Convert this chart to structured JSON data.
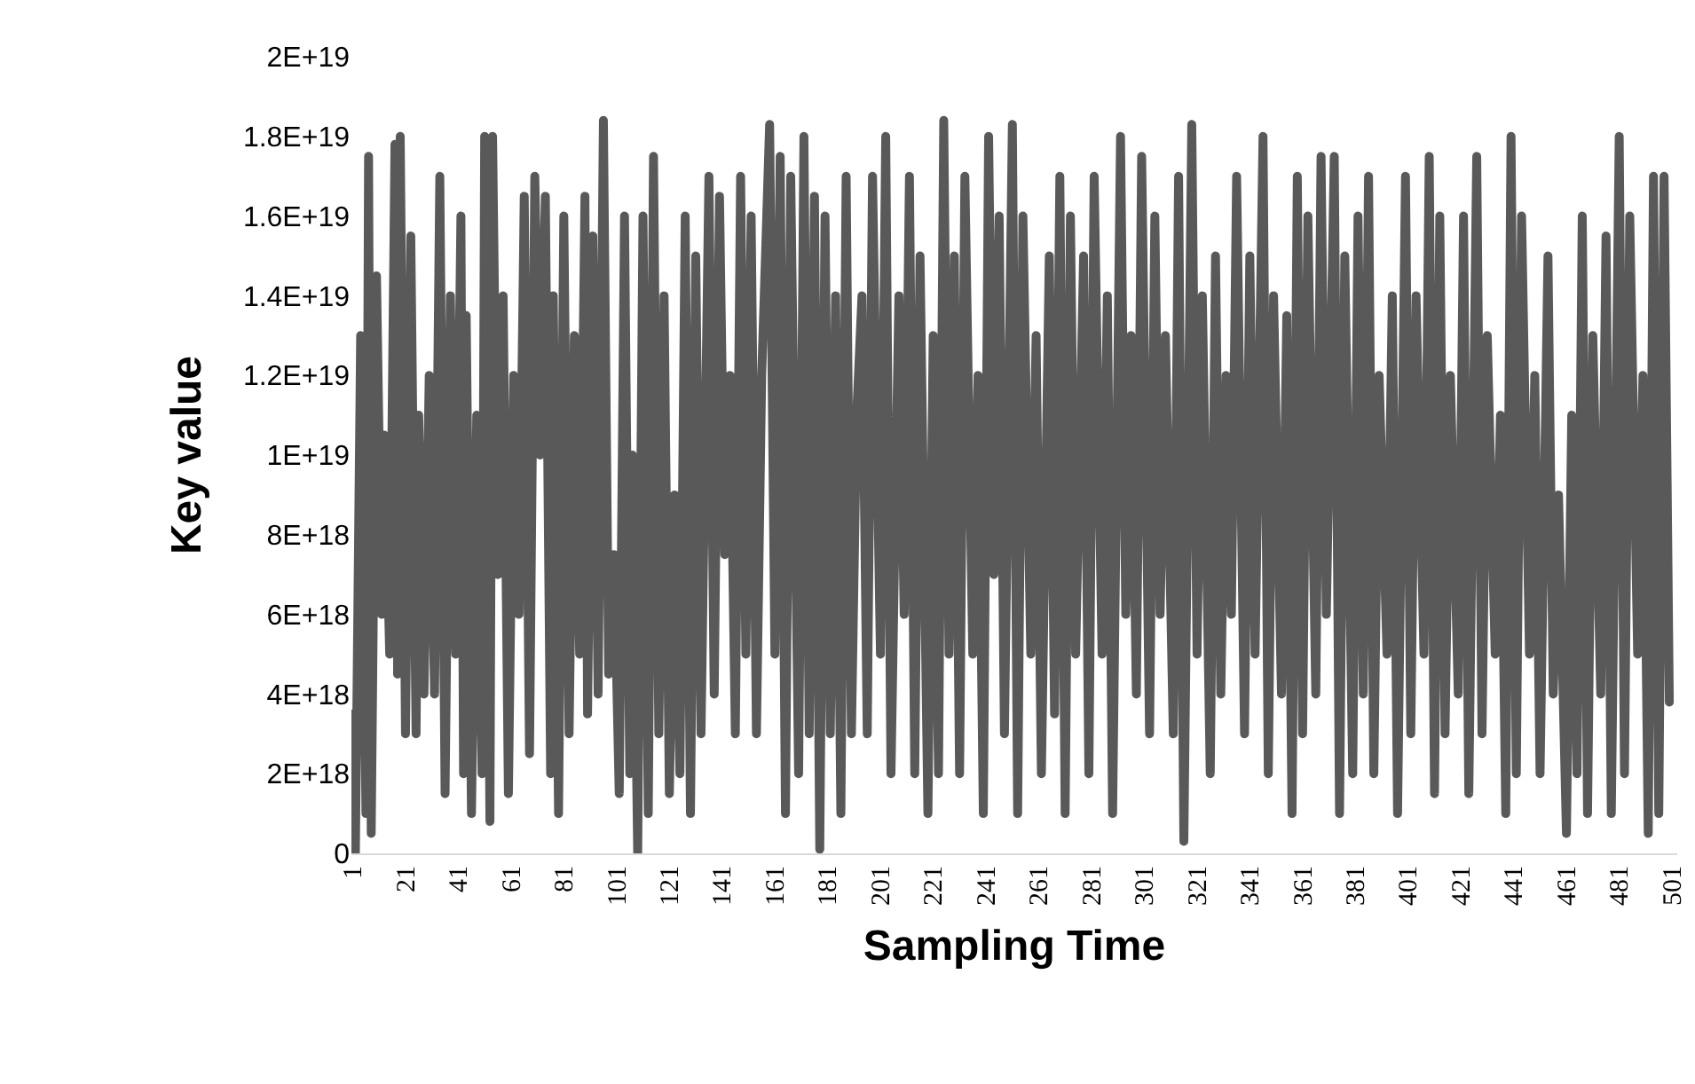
{
  "chart_data": {
    "type": "line",
    "xlabel": "Sampling Time",
    "ylabel": "Key value",
    "xlim": [
      0.5,
      503
    ],
    "xticks": [
      1,
      21,
      41,
      61,
      81,
      101,
      121,
      141,
      161,
      181,
      201,
      221,
      241,
      261,
      281,
      301,
      321,
      341,
      361,
      381,
      401,
      421,
      441,
      461,
      481,
      501
    ],
    "ylim": [
      0,
      2e+19
    ],
    "yticks": [
      0,
      {
        "value": 2e+18,
        "label": "2E+18"
      },
      {
        "value": 4e+18,
        "label": "4E+18"
      },
      {
        "value": 6e+18,
        "label": "6E+18"
      },
      {
        "value": 8e+18,
        "label": "8E+18"
      },
      {
        "value": 1e+19,
        "label": "1E+19"
      },
      {
        "value": 1.2e+19,
        "label": "1.2E+19"
      },
      {
        "value": 1.4e+19,
        "label": "1.4E+19"
      },
      {
        "value": 1.6e+19,
        "label": "1.6E+19"
      },
      {
        "value": 1.8e+19,
        "label": "1.8E+19"
      },
      {
        "value": 2e+19,
        "label": "2E+19"
      }
    ],
    "line_style": "solid",
    "x": [
      1,
      2,
      4,
      6,
      7,
      8,
      10,
      12,
      13,
      15,
      17,
      18,
      19,
      21,
      23,
      25,
      26,
      28,
      30,
      32,
      34,
      36,
      38,
      40,
      42,
      43,
      44,
      46,
      48,
      50,
      51,
      53,
      54,
      56,
      58,
      60,
      62,
      64,
      66,
      68,
      70,
      72,
      74,
      76,
      77,
      79,
      81,
      83,
      85,
      87,
      89,
      90,
      92,
      94,
      96,
      98,
      100,
      102,
      104,
      106,
      107,
      109,
      111,
      113,
      115,
      117,
      119,
      121,
      123,
      125,
      127,
      129,
      131,
      133,
      136,
      138,
      140,
      142,
      144,
      146,
      148,
      150,
      152,
      154,
      156,
      159,
      161,
      163,
      165,
      167,
      170,
      172,
      174,
      176,
      178,
      180,
      182,
      184,
      186,
      188,
      190,
      192,
      194,
      196,
      198,
      201,
      203,
      205,
      208,
      210,
      212,
      214,
      216,
      219,
      221,
      223,
      225,
      227,
      229,
      231,
      233,
      236,
      238,
      240,
      242,
      244,
      246,
      248,
      251,
      253,
      255,
      258,
      260,
      262,
      265,
      267,
      269,
      271,
      273,
      275,
      278,
      280,
      282,
      285,
      287,
      289,
      292,
      294,
      296,
      298,
      300,
      303,
      305,
      307,
      309,
      312,
      314,
      316,
      319,
      321,
      323,
      326,
      328,
      330,
      332,
      334,
      336,
      339,
      341,
      343,
      346,
      348,
      350,
      353,
      355,
      357,
      359,
      361,
      363,
      366,
      368,
      370,
      373,
      375,
      377,
      380,
      382,
      384,
      386,
      388,
      390,
      393,
      395,
      397,
      400,
      402,
      404,
      407,
      409,
      411,
      413,
      415,
      417,
      420,
      422,
      424,
      427,
      429,
      431,
      434,
      436,
      438,
      440,
      442,
      444,
      447,
      449,
      451,
      454,
      456,
      458,
      461,
      463,
      465,
      467,
      469,
      471,
      474,
      476,
      478,
      481,
      483,
      485,
      488,
      490,
      492,
      494,
      496,
      498,
      500
    ],
    "series": [
      {
        "color": "#595959",
        "values": [
          3.5e+18,
          0,
          1.3e+19,
          1e+18,
          1.75e+19,
          5e+17,
          1.45e+19,
          6e+18,
          1.05e+19,
          5e+18,
          1.78e+19,
          4.5e+18,
          1.8e+19,
          3e+18,
          1.55e+19,
          3e+18,
          1.1e+19,
          4e+18,
          1.2e+19,
          4e+18,
          1.7e+19,
          1.5e+18,
          1.4e+19,
          5e+18,
          1.6e+19,
          2e+18,
          1.35e+19,
          1e+18,
          1.1e+19,
          2e+18,
          1.8e+19,
          8e+17,
          1.8e+19,
          7e+18,
          1.4e+19,
          1.5e+18,
          1.2e+19,
          6e+18,
          1.65e+19,
          2.5e+18,
          1.7e+19,
          1e+19,
          1.65e+19,
          2e+18,
          1.4e+19,
          1e+18,
          1.6e+19,
          3e+18,
          1.3e+19,
          5e+18,
          1.65e+19,
          3.5e+18,
          1.55e+19,
          4e+18,
          1.84e+19,
          4.5e+18,
          7.5e+18,
          1.5e+18,
          1.6e+19,
          2e+18,
          1e+19,
          0,
          1.6e+19,
          1e+18,
          1.75e+19,
          3e+18,
          1.4e+19,
          1.5e+18,
          9e+18,
          2e+18,
          1.6e+19,
          1e+18,
          1.5e+19,
          3e+18,
          1.7e+19,
          4e+18,
          1.65e+19,
          7.5e+18,
          1.2e+19,
          3e+18,
          1.7e+19,
          5e+18,
          1.6e+19,
          3e+18,
          1.2e+19,
          1.83e+19,
          5e+18,
          1.75e+19,
          1e+18,
          1.7e+19,
          2e+18,
          1.8e+19,
          3e+18,
          1.65e+19,
          1e+17,
          1.6e+19,
          3e+18,
          1.4e+19,
          1e+18,
          1.7e+19,
          3e+18,
          1.1e+19,
          1.4e+19,
          3e+18,
          1.7e+19,
          5e+18,
          1.8e+19,
          2e+18,
          1.4e+19,
          6e+18,
          1.7e+19,
          2e+18,
          1.5e+19,
          1e+18,
          1.3e+19,
          2e+18,
          1.84e+19,
          5e+18,
          1.5e+19,
          2e+18,
          1.7e+19,
          5e+18,
          1.2e+19,
          1e+18,
          1.8e+19,
          7e+18,
          1.6e+19,
          3e+18,
          1.83e+19,
          1e+18,
          1.6e+19,
          5e+18,
          1.3e+19,
          2e+18,
          1.5e+19,
          3.5e+18,
          1.7e+19,
          1e+18,
          1.6e+19,
          5e+18,
          1.5e+19,
          2e+18,
          1.7e+19,
          5e+18,
          1.4e+19,
          1e+18,
          1.8e+19,
          6e+18,
          1.3e+19,
          4e+18,
          1.75e+19,
          3e+18,
          1.6e+19,
          6e+18,
          1.3e+19,
          3e+18,
          1.7e+19,
          3e+17,
          1.83e+19,
          5e+18,
          1.4e+19,
          2e+18,
          1.5e+19,
          4e+18,
          1.2e+19,
          6e+18,
          1.7e+19,
          3e+18,
          1.5e+19,
          5e+18,
          1.8e+19,
          2e+18,
          1.4e+19,
          4e+18,
          1.35e+19,
          1e+18,
          1.7e+19,
          3e+18,
          1.6e+19,
          4e+18,
          1.75e+19,
          6e+18,
          1.75e+19,
          1e+18,
          1.5e+19,
          2e+18,
          1.6e+19,
          4e+18,
          1.7e+19,
          2e+18,
          1.2e+19,
          5e+18,
          1.4e+19,
          1e+18,
          1.7e+19,
          3e+18,
          1.4e+19,
          5e+18,
          1.75e+19,
          1.5e+18,
          1.6e+19,
          3e+18,
          1.2e+19,
          4e+18,
          1.6e+19,
          1.5e+18,
          1.75e+19,
          3e+18,
          1.3e+19,
          5e+18,
          1.1e+19,
          1e+18,
          1.8e+19,
          2e+18,
          1.6e+19,
          5e+18,
          1.2e+19,
          2e+18,
          1.5e+19,
          4e+18,
          9e+18,
          5e+17,
          1.1e+19,
          2e+18,
          1.6e+19,
          1e+18,
          1.3e+19,
          4e+18,
          1.55e+19,
          1e+18,
          1.8e+19,
          2e+18,
          1.6e+19,
          5e+18,
          1.2e+19,
          5e+17,
          1.7e+19,
          1e+18,
          1.7e+19,
          3.8e+18
        ]
      }
    ]
  }
}
